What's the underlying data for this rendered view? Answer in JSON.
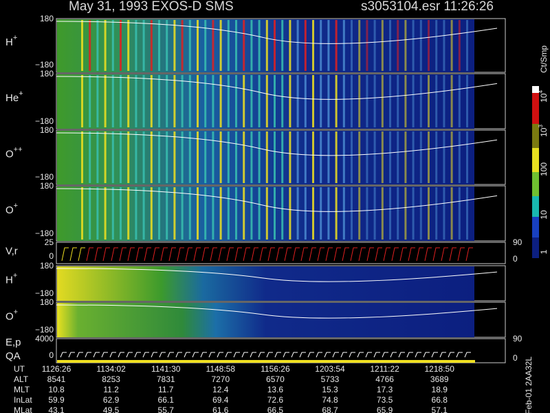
{
  "header": {
    "title": "May 31, 1993   EXOS-D SMS",
    "file": "s3053104.esr  11:26:26"
  },
  "panels": [
    {
      "label": "H",
      "sup": "+",
      "top": "180",
      "bottom": "−180"
    },
    {
      "label": "He",
      "sup": "+",
      "top": "180",
      "bottom": "−180"
    },
    {
      "label": "O",
      "sup": "++",
      "top": "180",
      "bottom": "−180"
    },
    {
      "label": "O",
      "sup": "+",
      "top": "180",
      "bottom": "−180"
    },
    {
      "label": "V,r",
      "top": "25",
      "bottom": "0",
      "right_top": "90",
      "right_bottom": "0"
    },
    {
      "label": "H",
      "sup": "+",
      "top": "180",
      "bottom": "−180"
    },
    {
      "label": "O",
      "sup": "+",
      "top": "180",
      "bottom": "−180"
    },
    {
      "label": "E,p",
      "label2": "QA",
      "top": "4000",
      "bottom": "0",
      "right_top": "90",
      "right_bottom": "0"
    }
  ],
  "colorbar": {
    "unit": "Ct/Smp",
    "ticks": [
      {
        "base": "10",
        "exp": "4"
      },
      {
        "base": "10",
        "exp": "3"
      },
      "100",
      "10",
      "1"
    ]
  },
  "footer": {
    "rows": [
      {
        "name": "UT",
        "values": [
          "1126:26",
          "1134:02",
          "1141:30",
          "1148:58",
          "1156:26",
          "1203:54",
          "1211:22",
          "1218:50"
        ]
      },
      {
        "name": "ALT",
        "values": [
          8541,
          8253,
          7831,
          7270,
          6570,
          5733,
          4766,
          3689
        ]
      },
      {
        "name": "MLT",
        "values": [
          10.8,
          11.2,
          11.7,
          12.4,
          13.6,
          15.3,
          17.3,
          18.9
        ]
      },
      {
        "name": "InLat",
        "values": [
          59.9,
          62.9,
          66.1,
          69.4,
          72.6,
          74.8,
          73.5,
          66.8
        ]
      },
      {
        "name": "MLat",
        "values": [
          43.1,
          49.5,
          55.7,
          61.6,
          66.5,
          68.7,
          65.9,
          57.1
        ]
      }
    ]
  },
  "side_note": "Feb-01 2AA32L"
}
